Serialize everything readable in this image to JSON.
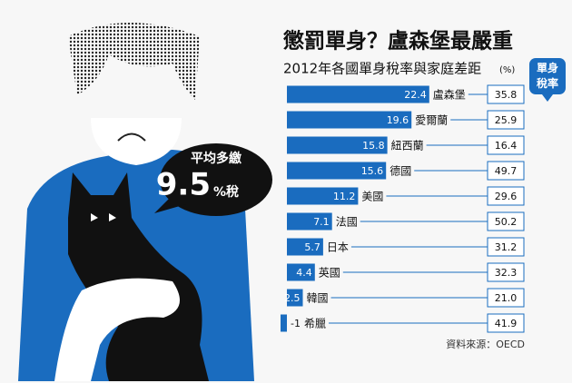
{
  "chart_data": {
    "type": "bar",
    "title": "懲罰單身？盧森堡最嚴重",
    "subtitle": "2012年各國單身稅率與家庭差距",
    "unit": "(%)",
    "categories": [
      "盧森堡",
      "愛爾蘭",
      "紐西蘭",
      "德國",
      "美國",
      "法國",
      "日本",
      "英國",
      "韓國",
      "希臘"
    ],
    "values": [
      22.4,
      19.6,
      15.8,
      15.6,
      11.2,
      7.1,
      5.7,
      4.4,
      2.5,
      -1
    ],
    "color": "#1a6cbf",
    "single_tax": {
      "label": "單身稅率",
      "values": [
        35.8,
        25.9,
        16.4,
        49.7,
        29.6,
        50.2,
        31.2,
        32.3,
        21.0,
        41.9
      ],
      "value_labels": [
        "35.8",
        "25.9",
        "16.4",
        "49.7",
        "29.6",
        "50.2",
        "31.2",
        "32.3",
        "21.0",
        "41.9"
      ]
    },
    "annotation": {
      "text": "平均多繳",
      "value": 9.5,
      "unit": "%稅"
    },
    "source": "資料來源：OECD"
  }
}
